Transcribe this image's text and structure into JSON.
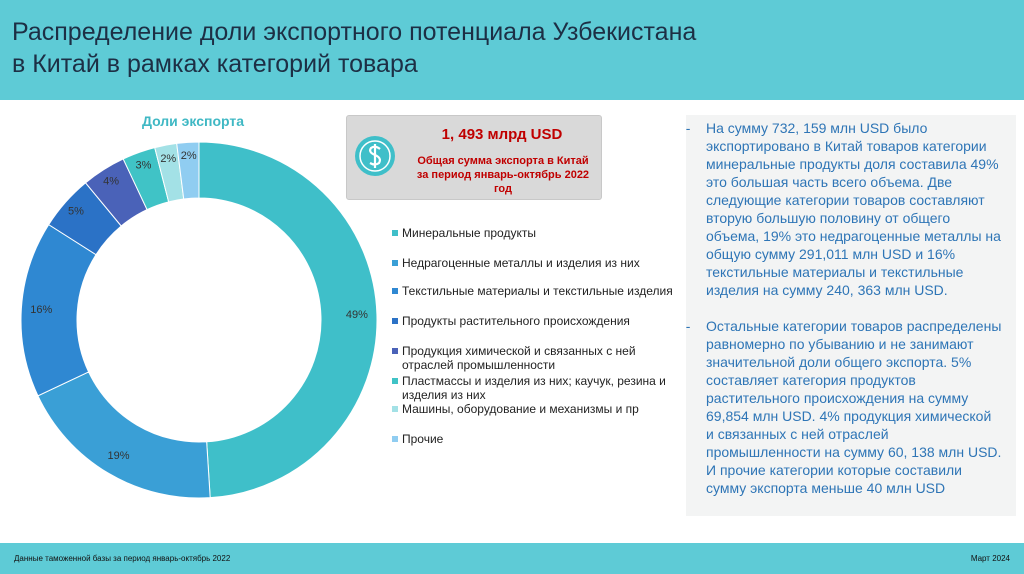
{
  "header": {
    "title_lines": [
      "Распределение доли экспортного потенциала Узбекистана",
      "в Китай в рамках категорий товара"
    ]
  },
  "chart_data": {
    "type": "donut",
    "title": "Доли экспорта",
    "categories": [
      "Минеральные продукты",
      "Недрагоценные металлы и изделия из них",
      "Текстильные материалы и текстильные изделия",
      "Продукты растительного происхождения",
      "Продукция химической и связанных с ней отраслей промышленности",
      "Пластмассы и изделия из них; каучук, резина и изделия из них",
      "Машины, оборудование и механизмы и пр",
      "Прочие"
    ],
    "values": [
      49,
      19,
      16,
      5,
      4,
      3,
      2,
      2
    ],
    "value_labels": [
      "49%",
      "19%",
      "16%",
      "5%",
      "4%",
      "3%",
      "2%",
      "2%"
    ],
    "colors": [
      "#3fbfc9",
      "#3a9fd6",
      "#2f88d2",
      "#2b72c6",
      "#4a62b8",
      "#40c3c6",
      "#a3e1e6",
      "#90cdf1"
    ]
  },
  "info": {
    "amount": "1, 493 млрд USD",
    "caption": "Общая сумма экспорта в Китай за период январь-октябрь 2022 год"
  },
  "notes": [
    "На сумму 732, 159 млн USD было экспортировано в Китай товаров категории минеральные продукты доля составила 49% это большая часть всего объема. Две следующие категории товаров составляют вторую большую половину от общего объема, 19% это недрагоценные металлы на общую сумму 291,011 млн USD и 16% текстильные материалы и текстильные изделия на сумму 240, 363 млн USD.",
    "Остальные категории товаров распределены равномерно по убыванию и не занимают значительной доли общего экспорта. 5% составляет категория продуктов растительного происхождения на сумму 69,854 млн USD. 4% продукция химической и связанных с ней отраслей промышленности на сумму 60, 138 млн USD.  И прочие категории которые составили сумму экспорта меньше 40 млн USD"
  ],
  "footer": {
    "source": "Данные таможенной базы за период январь-октябрь 2022",
    "date": "Март 2024"
  }
}
